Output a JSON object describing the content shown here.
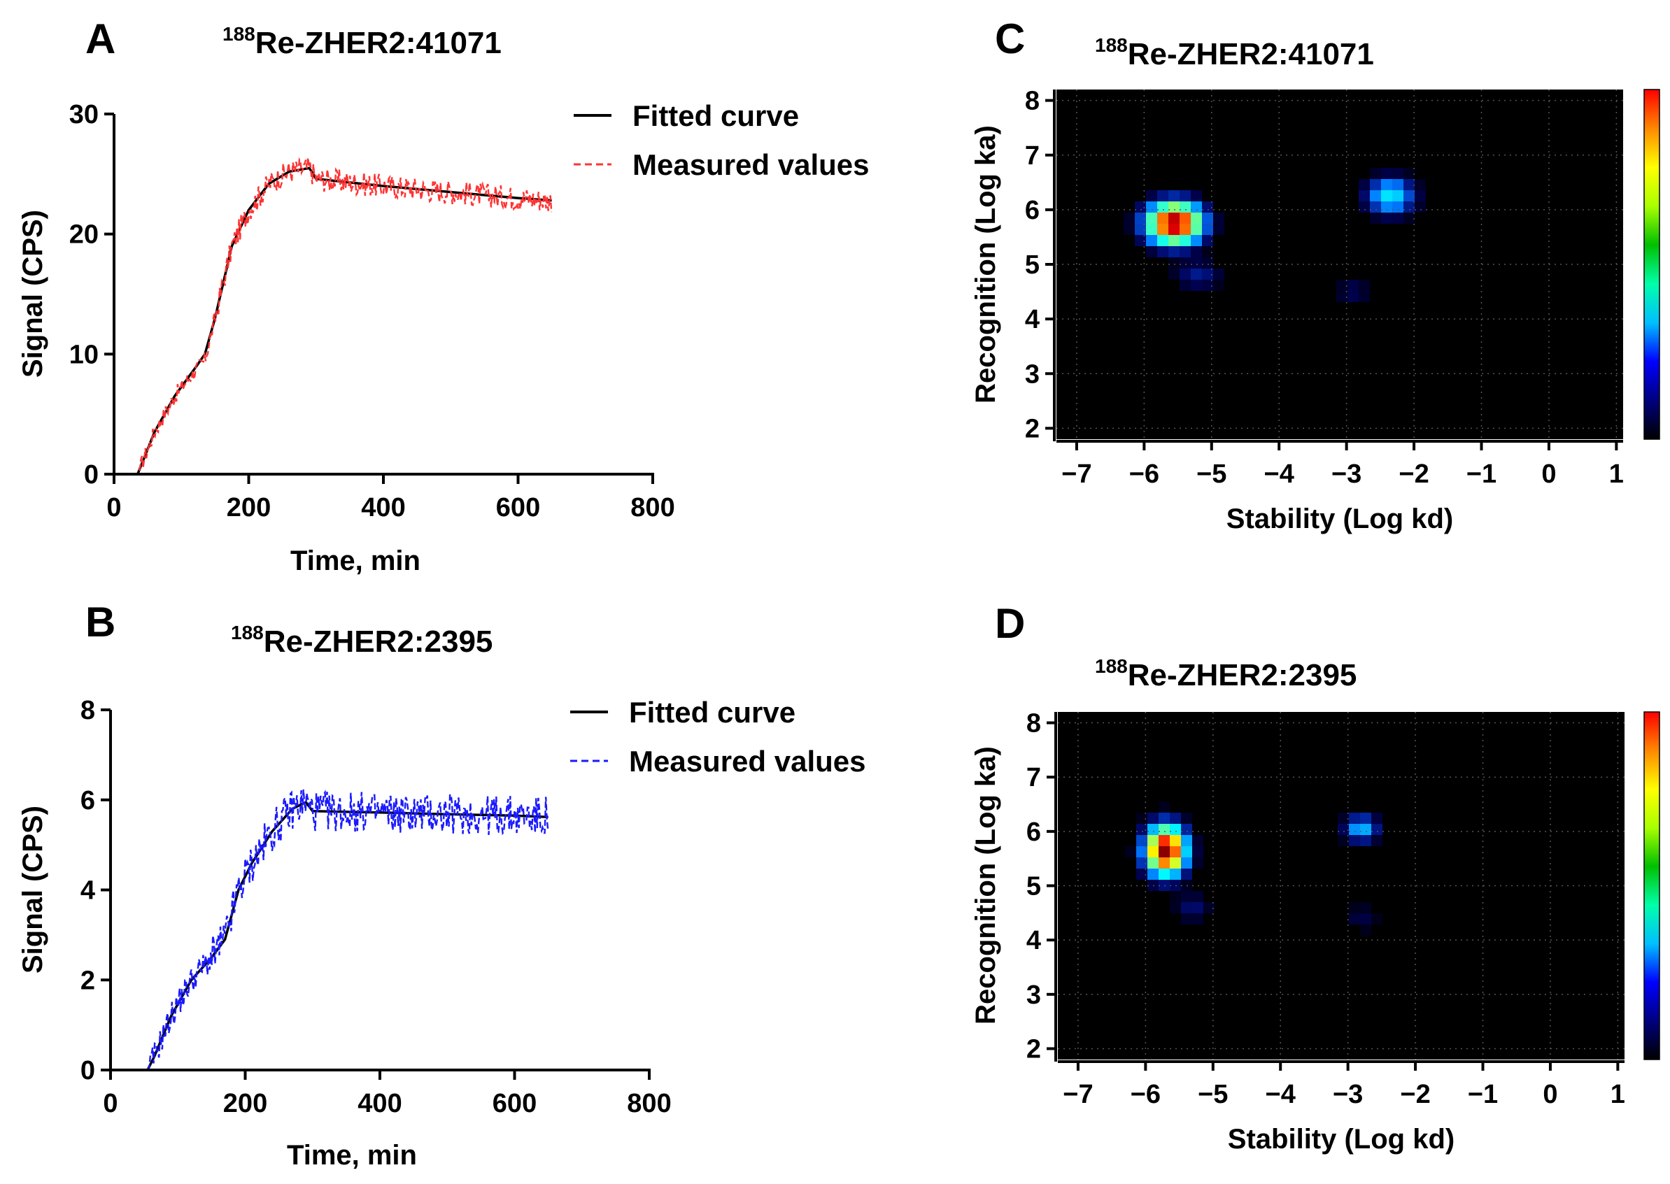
{
  "panels": {
    "A": {
      "letter": "A",
      "title_sup": "188",
      "title_main": "Re-ZHER2:41071"
    },
    "B": {
      "letter": "B",
      "title_sup": "188",
      "title_main": "Re-ZHER2:2395"
    },
    "C": {
      "letter": "C",
      "title_sup": "188",
      "title_main": "Re-ZHER2:41071"
    },
    "D": {
      "letter": "D",
      "title_sup": "188",
      "title_main": "Re-ZHER2:2395"
    }
  },
  "chart_data": [
    {
      "id": "A",
      "type": "line",
      "xlabel": "Time, min",
      "ylabel": "Signal (CPS)",
      "xlim": [
        0,
        800
      ],
      "ylim": [
        0,
        30
      ],
      "xticks": [
        "0",
        "200",
        "400",
        "600",
        "800"
      ],
      "yticks": [
        "0",
        "10",
        "20",
        "30"
      ],
      "legend": {
        "placement": "top-right",
        "entries": [
          "Fitted curve",
          "Measured values"
        ]
      },
      "series": [
        {
          "name": "Fitted curve",
          "style": "solid",
          "color": "#000000",
          "x": [
            0,
            35,
            60,
            90,
            120,
            135,
            150,
            175,
            200,
            230,
            260,
            290,
            300,
            400,
            500,
            600,
            650
          ],
          "y": [
            0,
            0,
            3.5,
            6.5,
            8.8,
            10,
            13,
            19,
            22,
            24.2,
            25.2,
            25.5,
            24.6,
            24.0,
            23.5,
            23.0,
            22.8
          ]
        },
        {
          "name": "Measured values",
          "style": "dashed",
          "color": "#ff3333",
          "noise": 1.0,
          "x": [
            0,
            35,
            60,
            90,
            120,
            135,
            150,
            175,
            200,
            230,
            260,
            290,
            300,
            400,
            500,
            600,
            650
          ],
          "y": [
            0,
            0,
            3.5,
            6.5,
            8.6,
            9.5,
            13,
            19,
            22,
            24.2,
            25.2,
            25.5,
            24.6,
            24.0,
            23.5,
            23.0,
            22.8
          ]
        }
      ]
    },
    {
      "id": "B",
      "type": "line",
      "xlabel": "Time, min",
      "ylabel": "Signal (CPS)",
      "xlim": [
        0,
        800
      ],
      "ylim": [
        0,
        8
      ],
      "xticks": [
        "0",
        "200",
        "400",
        "600",
        "800"
      ],
      "yticks": [
        "0",
        "2",
        "4",
        "6",
        "8"
      ],
      "legend": {
        "placement": "top-right",
        "entries": [
          "Fitted curve",
          "Measured values"
        ]
      },
      "series": [
        {
          "name": "Fitted curve",
          "style": "solid",
          "color": "#000000",
          "x": [
            0,
            55,
            65,
            90,
            120,
            150,
            170,
            190,
            210,
            240,
            270,
            290,
            300,
            400,
            500,
            600,
            650
          ],
          "y": [
            0,
            0,
            0.3,
            1.2,
            2.0,
            2.5,
            2.9,
            4.0,
            4.6,
            5.3,
            5.8,
            5.95,
            5.75,
            5.72,
            5.68,
            5.65,
            5.62
          ]
        },
        {
          "name": "Measured values",
          "style": "dashed",
          "color": "#1a1aff",
          "noise": 0.45,
          "x": [
            0,
            55,
            65,
            90,
            120,
            150,
            170,
            190,
            210,
            240,
            270,
            290,
            300,
            400,
            500,
            600,
            650
          ],
          "y": [
            0,
            0,
            0.3,
            1.2,
            2.0,
            2.5,
            2.9,
            4.0,
            4.6,
            5.3,
            5.8,
            5.95,
            5.75,
            5.72,
            5.68,
            5.65,
            5.62
          ]
        }
      ]
    },
    {
      "id": "C",
      "type": "heatmap",
      "xlabel": "Stability (Log kd)",
      "ylabel": "Recognition (Log ka)",
      "xlim": [
        -7.3,
        1.1
      ],
      "ylim": [
        1.8,
        8.2
      ],
      "xticks": [
        "−7",
        "−6",
        "−5",
        "−4",
        "−3",
        "−2",
        "−1",
        "0",
        "1"
      ],
      "yticks": [
        "2",
        "3",
        "4",
        "5",
        "6",
        "7",
        "8"
      ],
      "grid": true,
      "colorbar": [
        "#000000",
        "#00007f",
        "#0000ff",
        "#00bfff",
        "#00ffaa",
        "#00c000",
        "#aaff00",
        "#ffff00",
        "#ff8800",
        "#ff0000"
      ],
      "peaks": [
        {
          "x": -5.55,
          "y": 5.75,
          "intensity": 1.0,
          "sx": 0.45,
          "sy": 0.42
        },
        {
          "x": -2.35,
          "y": 6.25,
          "intensity": 0.3,
          "sx": 0.4,
          "sy": 0.38
        },
        {
          "x": -5.2,
          "y": 4.8,
          "intensity": 0.1,
          "sx": 0.4,
          "sy": 0.3
        },
        {
          "x": -2.9,
          "y": 4.5,
          "intensity": 0.06,
          "sx": 0.3,
          "sy": 0.3
        }
      ]
    },
    {
      "id": "D",
      "type": "heatmap",
      "xlabel": "Stability (Log kd)",
      "ylabel": "Recognition (Log ka)",
      "xlim": [
        -7.3,
        1.1
      ],
      "ylim": [
        1.8,
        8.2
      ],
      "xticks": [
        "−7",
        "−6",
        "−5",
        "−4",
        "−3",
        "−2",
        "−1",
        "0",
        "1"
      ],
      "yticks": [
        "2",
        "3",
        "4",
        "5",
        "6",
        "7",
        "8"
      ],
      "grid": true,
      "colorbar": [
        "#000000",
        "#00007f",
        "#0000ff",
        "#00bfff",
        "#00ffaa",
        "#00c000",
        "#aaff00",
        "#ffff00",
        "#ff8800",
        "#ff0000"
      ],
      "peaks": [
        {
          "x": -5.7,
          "y": 5.65,
          "intensity": 1.0,
          "sx": 0.33,
          "sy": 0.5
        },
        {
          "x": -2.8,
          "y": 6.05,
          "intensity": 0.25,
          "sx": 0.28,
          "sy": 0.28
        },
        {
          "x": -5.3,
          "y": 4.6,
          "intensity": 0.08,
          "sx": 0.3,
          "sy": 0.3
        },
        {
          "x": -2.8,
          "y": 4.4,
          "intensity": 0.05,
          "sx": 0.3,
          "sy": 0.3
        }
      ]
    }
  ]
}
